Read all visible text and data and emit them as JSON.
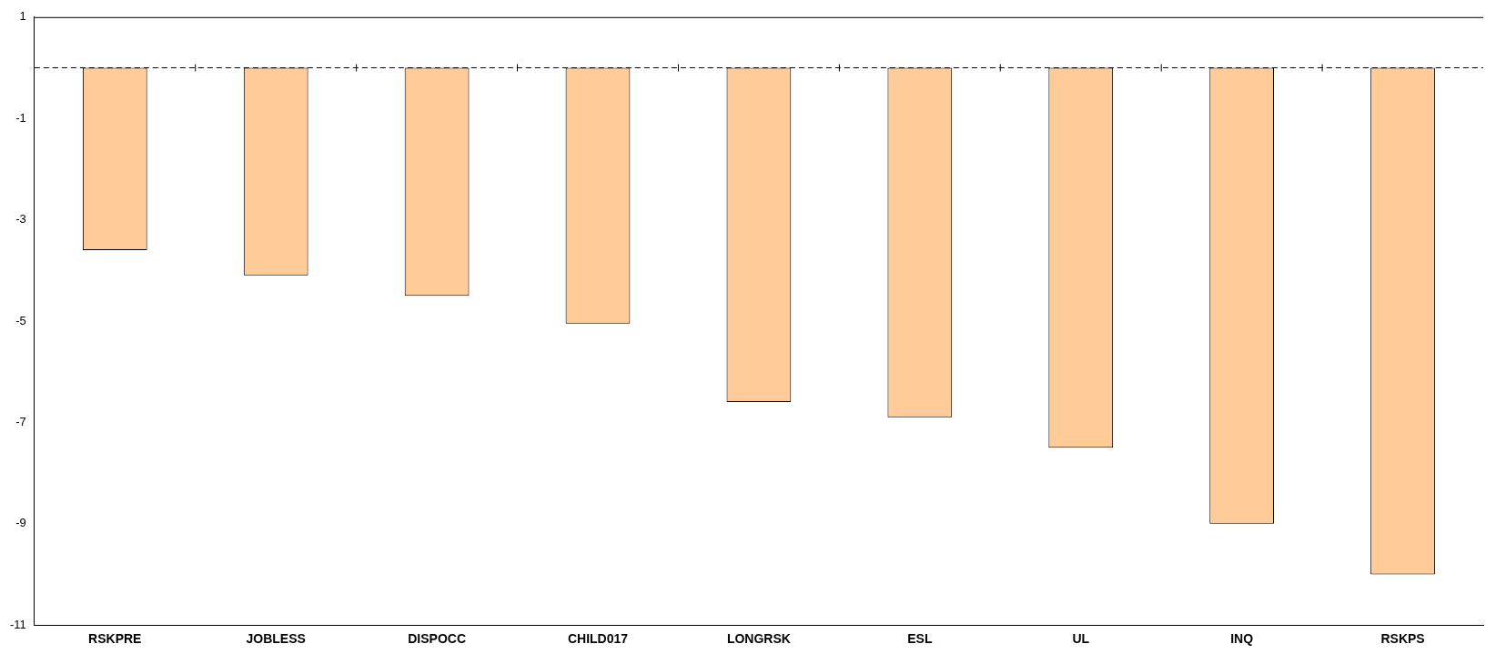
{
  "chart_data": {
    "type": "bar",
    "categories": [
      "RSKPRE",
      "JOBLESS",
      "DISPOCC",
      "CHILD017",
      "LONGRSK",
      "ESL",
      "UL",
      "INQ",
      "RSKPS"
    ],
    "values": [
      -3.6,
      -4.1,
      -4.5,
      -5.05,
      -6.6,
      -6.9,
      -7.5,
      -9.0,
      -10.0
    ],
    "color": "#ffcc99",
    "ylim": [
      -11,
      1
    ],
    "yticks": [
      1,
      -1,
      -3,
      -5,
      -7,
      -9,
      -11
    ],
    "grid": false,
    "legend": false,
    "ref_lines": [
      {
        "axis": "y",
        "value": 0,
        "line_style": "dashed",
        "color": "#000000"
      }
    ]
  }
}
